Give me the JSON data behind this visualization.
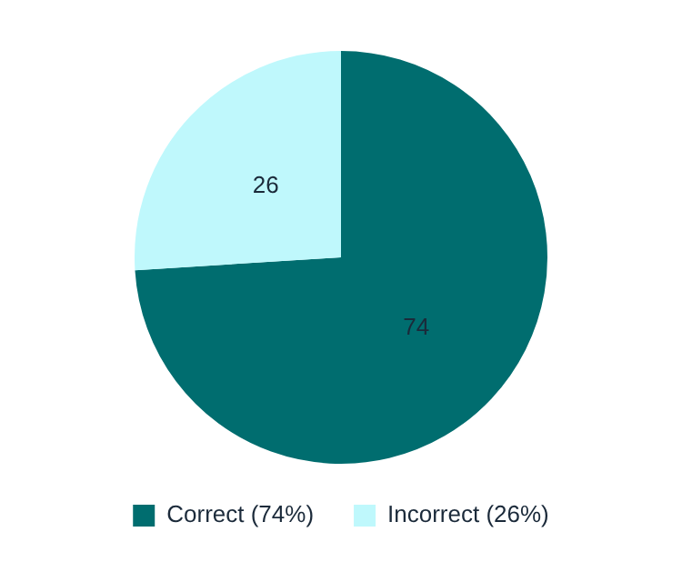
{
  "chart_data": {
    "type": "pie",
    "categories": [
      "Correct (74%)",
      "Incorrect (26%)"
    ],
    "values": [
      74,
      26
    ],
    "colors": [
      "#006d6f",
      "#bff8fc"
    ],
    "data_labels": true,
    "legend": "bottom"
  }
}
